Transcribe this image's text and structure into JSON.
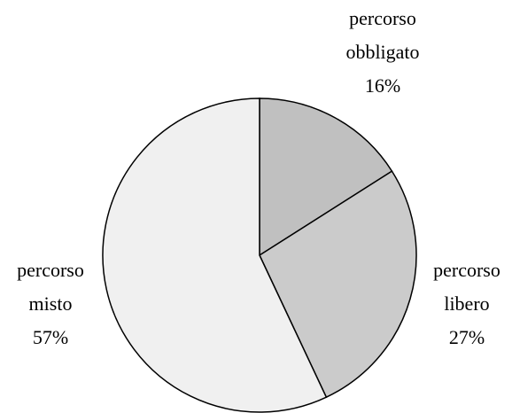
{
  "chart_data": {
    "type": "pie",
    "categories": [
      "percorso obbligato",
      "percorso libero",
      "percorso misto"
    ],
    "values": [
      16,
      27,
      57
    ],
    "value_labels": [
      "16%",
      "27%",
      "57%"
    ],
    "colors": [
      "#c0c0c0",
      "#cbcbcb",
      "#f0f0f0"
    ]
  }
}
